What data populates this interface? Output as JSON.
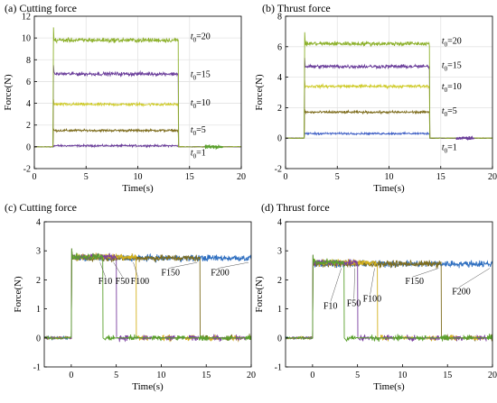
{
  "chart_data": [
    {
      "id": "a",
      "type": "line",
      "title": "(a) Cutting force",
      "xlabel": "Time(s)",
      "ylabel": "Force(N)",
      "xlim": [
        0,
        20
      ],
      "ylim": [
        -2,
        12
      ],
      "xticks": [
        0,
        5,
        10,
        15,
        20
      ],
      "yticks": [
        -2,
        0,
        2,
        4,
        6,
        8,
        10,
        12
      ],
      "grid": true,
      "on": 1.8,
      "off": 13.9,
      "tail": [
        16.5,
        18.2
      ],
      "noise_color": "#5aa02c",
      "series": [
        {
          "name": "t0=1",
          "label_main": "t",
          "label_sub": "0",
          "label_rest": "=1",
          "steady": 0.1,
          "color": "#6a3d9a",
          "label_x": 15.1,
          "label_y": -0.8
        },
        {
          "name": "t0=5",
          "label_main": "t",
          "label_sub": "0",
          "label_rest": "=5",
          "steady": 1.5,
          "color": "#7e6d1e",
          "label_x": 15.1,
          "label_y": 1.3
        },
        {
          "name": "t0=10",
          "label_main": "t",
          "label_sub": "0",
          "label_rest": "=10",
          "steady": 3.9,
          "color": "#cfcb2a",
          "label_x": 15.1,
          "label_y": 3.8
        },
        {
          "name": "t0=15",
          "label_main": "t",
          "label_sub": "0",
          "label_rest": "=15",
          "steady": 6.7,
          "color": "#6a3d9a",
          "label_x": 15.1,
          "label_y": 6.4
        },
        {
          "name": "t0=20",
          "label_main": "t",
          "label_sub": "0",
          "label_rest": "=20",
          "steady": 9.8,
          "color": "#8cb02a",
          "label_x": 15.1,
          "label_y": 9.9
        }
      ]
    },
    {
      "id": "b",
      "type": "line",
      "title": "(b) Thrust force",
      "xlabel": "Time(s)",
      "ylabel": "Force(N)",
      "xlim": [
        0,
        20
      ],
      "ylim": [
        -2,
        8
      ],
      "xticks": [
        0,
        5,
        10,
        15,
        20
      ],
      "yticks": [
        -2,
        0,
        2,
        4,
        6,
        8
      ],
      "grid": true,
      "on": 1.8,
      "off": 13.9,
      "tail": [
        16.5,
        18.2
      ],
      "noise_color": "#6a3d9a",
      "series": [
        {
          "name": "t0=1",
          "label_main": "t",
          "label_sub": "0",
          "label_rest": "=1",
          "steady": 0.3,
          "color": "#3b5cc4",
          "label_x": 15.1,
          "label_y": -0.8
        },
        {
          "name": "t0=5",
          "label_main": "t",
          "label_sub": "0",
          "label_rest": "=5",
          "steady": 1.7,
          "color": "#7e6d1e",
          "label_x": 15.1,
          "label_y": 1.6
        },
        {
          "name": "t0=10",
          "label_main": "t",
          "label_sub": "0",
          "label_rest": "=10",
          "steady": 3.4,
          "color": "#cfcb2a",
          "label_x": 15.1,
          "label_y": 3.2
        },
        {
          "name": "t0=15",
          "label_main": "t",
          "label_sub": "0",
          "label_rest": "=15",
          "steady": 4.7,
          "color": "#6a3d9a",
          "label_x": 15.1,
          "label_y": 4.6
        },
        {
          "name": "t0=20",
          "label_main": "t",
          "label_sub": "0",
          "label_rest": "=20",
          "steady": 6.2,
          "color": "#8cb02a",
          "label_x": 15.1,
          "label_y": 6.2
        }
      ]
    },
    {
      "id": "c",
      "type": "line",
      "title": "(c) Cutting force",
      "xlabel": "Time(s)",
      "ylabel": "Force(N)",
      "xlim": [
        -3,
        20
      ],
      "ylim": [
        -1,
        4
      ],
      "xticks": [
        0,
        5,
        10,
        15,
        20
      ],
      "yticks": [
        -1,
        0,
        1,
        2,
        3,
        4
      ],
      "grid": false,
      "on": 0.0,
      "steady": 2.8,
      "series": [
        {
          "name": "F10",
          "off": 3.5,
          "color": "#5aa02c",
          "label_x": 3.0,
          "label_y": 1.85
        },
        {
          "name": "F50",
          "off": 5.0,
          "color": "#7b3fa0",
          "label_x": 4.9,
          "label_y": 1.85
        },
        {
          "name": "F100",
          "off": 7.2,
          "color": "#d4b21f",
          "label_x": 6.6,
          "label_y": 1.85
        },
        {
          "name": "F150",
          "off": 14.3,
          "color": "#7e6d1e",
          "label_x": 10.0,
          "label_y": 2.15
        },
        {
          "name": "F200",
          "off": 20.0,
          "color": "#2f6fc0",
          "label_x": 15.5,
          "label_y": 2.15
        }
      ]
    },
    {
      "id": "d",
      "type": "line",
      "title": "(d) Thrust force",
      "xlabel": "Time(s)",
      "ylabel": "Force(N)",
      "xlim": [
        -3,
        20
      ],
      "ylim": [
        -1,
        4
      ],
      "xticks": [
        0,
        5,
        10,
        15,
        20
      ],
      "yticks": [
        -1,
        0,
        1,
        2,
        3,
        4
      ],
      "grid": false,
      "on": 0.0,
      "steady": 2.6,
      "series": [
        {
          "name": "F10",
          "off": 3.5,
          "color": "#5aa02c",
          "label_x": 1.2,
          "label_y": 1.0
        },
        {
          "name": "F50",
          "off": 5.0,
          "color": "#7b3fa0",
          "label_x": 3.8,
          "label_y": 1.1
        },
        {
          "name": "F100",
          "off": 7.2,
          "color": "#d4b21f",
          "label_x": 5.6,
          "label_y": 1.25
        },
        {
          "name": "F150",
          "off": 14.3,
          "color": "#7e6d1e",
          "label_x": 10.3,
          "label_y": 1.85
        },
        {
          "name": "F200",
          "off": 20.0,
          "color": "#2f6fc0",
          "label_x": 15.5,
          "label_y": 1.5
        }
      ]
    }
  ]
}
